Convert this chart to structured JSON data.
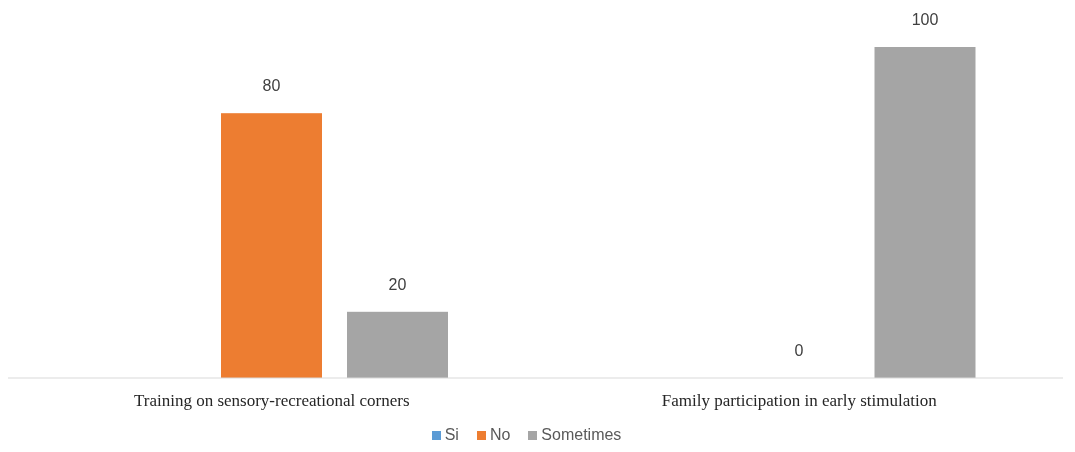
{
  "chart_data": {
    "type": "bar",
    "categories": [
      "Training on sensory-recreational corners",
      "Family participation in early stimulation"
    ],
    "series": [
      {
        "name": "Si",
        "color": "#5b9bd5",
        "values": [
          null,
          null
        ]
      },
      {
        "name": "No",
        "color": "#ed7d31",
        "values": [
          80,
          0
        ]
      },
      {
        "name": "Sometimes",
        "color": "#a5a5a5",
        "values": [
          20,
          100
        ]
      }
    ],
    "data_labels": true,
    "legend": "bottom",
    "grid": false
  }
}
